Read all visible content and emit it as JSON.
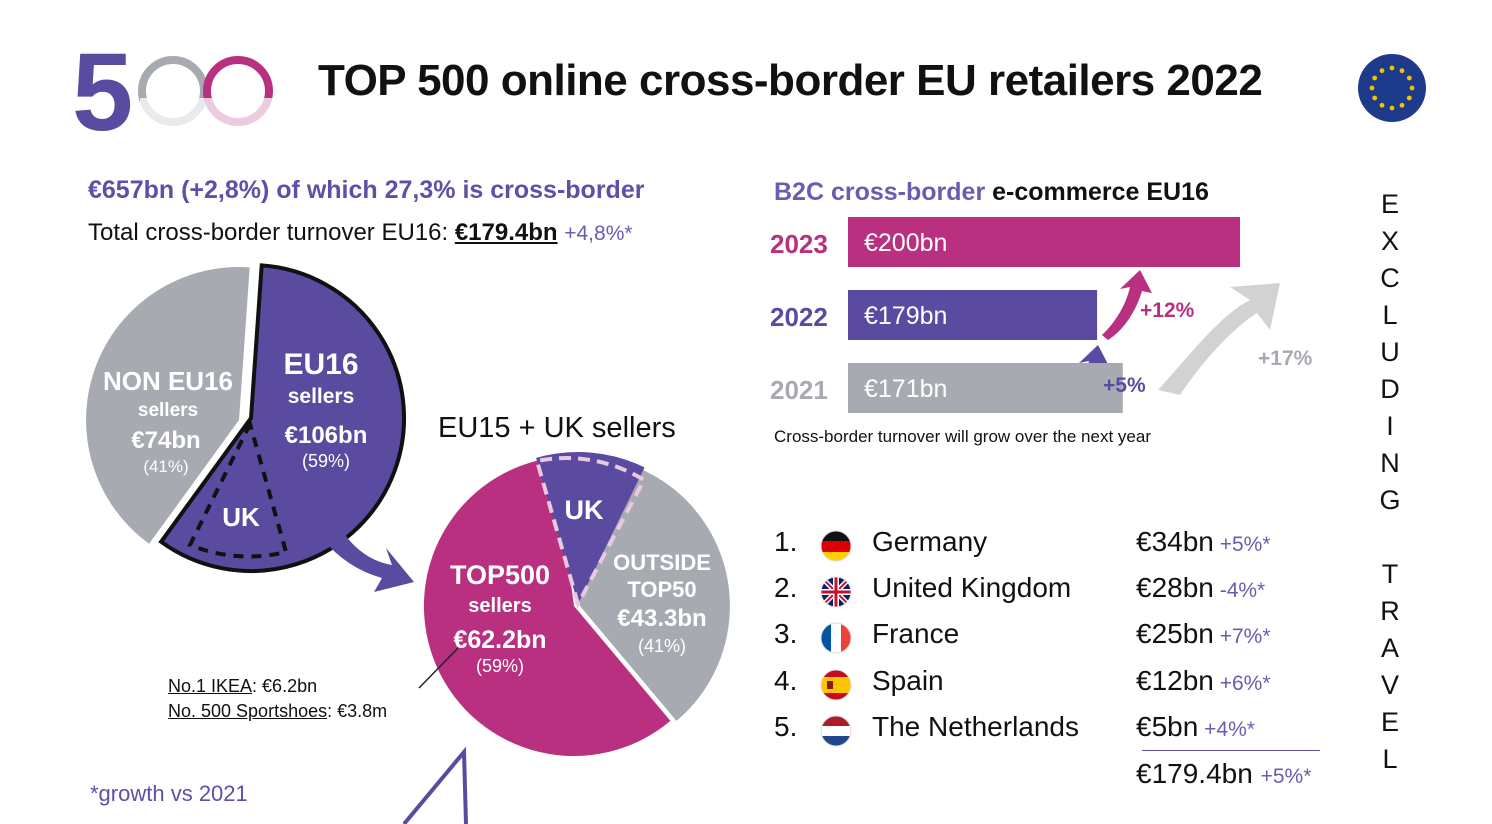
{
  "header": {
    "logo_text": "500",
    "title": "TOP 500 online cross-border EU retailers 2022"
  },
  "left": {
    "subtitle": "€657bn (+2,8%) of which 27,3% is cross-border",
    "total_prefix": "Total cross-border turnover EU16: ",
    "total_amount": "€179.4bn",
    "total_growth": "+4,8%*",
    "pie_top_title": "EU15 + UK sellers",
    "ikea_label": "No.1 IKEA",
    "ikea_value": ": €6.2bn",
    "sportshoes_label": "No. 500 Sportshoes",
    "sportshoes_value": ": €3.8m",
    "growth_note": "*growth vs 2021"
  },
  "b2c": {
    "title_part1": "B2C cross-border",
    "title_part2": " e-commerce EU16",
    "note": "Cross-border turnover will grow over the next year"
  },
  "vertical_label": "EXCLUDING TRAVEL",
  "ranking": {
    "items": [
      {
        "rank": "1.",
        "country": "Germany",
        "value": "€34bn",
        "growth": "+5%*",
        "flag": "germany-flag-icon"
      },
      {
        "rank": "2.",
        "country": "United Kingdom",
        "value": "€28bn",
        "growth": "-4%*",
        "flag": "uk-flag-icon"
      },
      {
        "rank": "3.",
        "country": "France",
        "value": "€25bn",
        "growth": "+7%*",
        "flag": "france-flag-icon"
      },
      {
        "rank": "4.",
        "country": "Spain",
        "value": "€12bn",
        "growth": "+6%*",
        "flag": "spain-flag-icon"
      },
      {
        "rank": "5.",
        "country": "The Netherlands",
        "value": "€5bn",
        "growth": "+4%*",
        "flag": "netherlands-flag-icon"
      }
    ],
    "total_value": "€179.4bn",
    "total_growth": "+5%*"
  },
  "colors": {
    "purple": "#5a4ba0",
    "magenta": "#b8307f",
    "gray": "#a7aab0",
    "light_gray": "#d2d2d2"
  },
  "chart_data": [
    {
      "type": "pie",
      "slices": [
        {
          "label": "NON EU16",
          "sublabel": "sellers",
          "value_text": "€74bn",
          "pct_text": "(41%)",
          "value": 74,
          "pct": 41
        },
        {
          "label": "EU16",
          "sublabel": "sellers",
          "value_text": "€106bn",
          "pct_text": "(59%)",
          "value": 106,
          "pct": 59
        }
      ],
      "annotations": [
        "UK"
      ]
    },
    {
      "type": "pie",
      "title": "EU15 + UK sellers",
      "slices": [
        {
          "label": "TOP500",
          "sublabel": "sellers",
          "value_text": "€62.2bn",
          "pct_text": "(59%)",
          "value": 62.2,
          "pct": 59
        },
        {
          "label": "OUTSIDE",
          "sublabel": "TOP50",
          "value_text": "€43.3bn",
          "pct_text": "(41%)",
          "value": 43.3,
          "pct": 41
        }
      ],
      "annotations": [
        "UK"
      ]
    },
    {
      "type": "bar",
      "orientation": "horizontal",
      "title": "B2C cross-border e-commerce EU16",
      "categories": [
        "2023",
        "2022",
        "2021"
      ],
      "values": [
        200,
        179,
        171
      ],
      "value_labels": [
        "€200bn",
        "€179bn",
        "€171bn"
      ],
      "growth_labels": [
        "+12%",
        "+5%",
        "+17%"
      ]
    }
  ]
}
